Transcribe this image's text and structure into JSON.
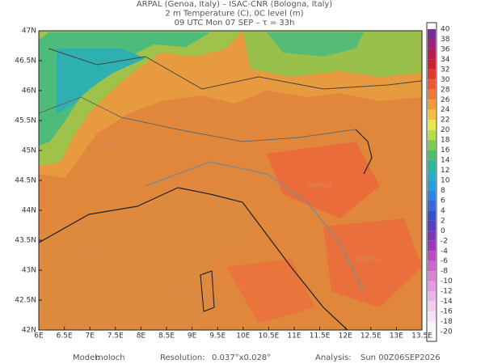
{
  "header": [
    "ARPAL (Genoa, Italy)  –  ISAC-CNR (Bologna, Italy)",
    "2 m Temperature (C), 0C level (m)",
    "09 UTC Mon 07 SEP  –  τ = 33h"
  ],
  "lat_labels": [
    "47N",
    "46.5N",
    "46N",
    "45.5N",
    "45N",
    "44.5N",
    "44N",
    "43.5N",
    "43N",
    "42.5N",
    "42N"
  ],
  "lon_labels": [
    "6E",
    "6.5E",
    "7E",
    "7.5E",
    "8E",
    "8.5E",
    "9E",
    "9.5E",
    "10E",
    "10.5E",
    "11E",
    "11.5E",
    "12E",
    "12.5E",
    "13E",
    "13.5E"
  ],
  "colorbar": {
    "labels": [
      40,
      38,
      36,
      34,
      32,
      30,
      28,
      26,
      24,
      22,
      20,
      18,
      16,
      14,
      12,
      10,
      8,
      6,
      4,
      2,
      0,
      -2,
      -4,
      -6,
      -8,
      -10,
      -12,
      -14,
      -16,
      -18,
      -20
    ]
  },
  "watermark": "ARPAL",
  "footer": {
    "model_label": "Model:",
    "model": "moloch",
    "resolution_label": "Resolution:",
    "resolution": "0.037°x0.028°",
    "analysis_label": "Analysis:",
    "analysis": "Sun 00Z06SEP2026"
  }
}
